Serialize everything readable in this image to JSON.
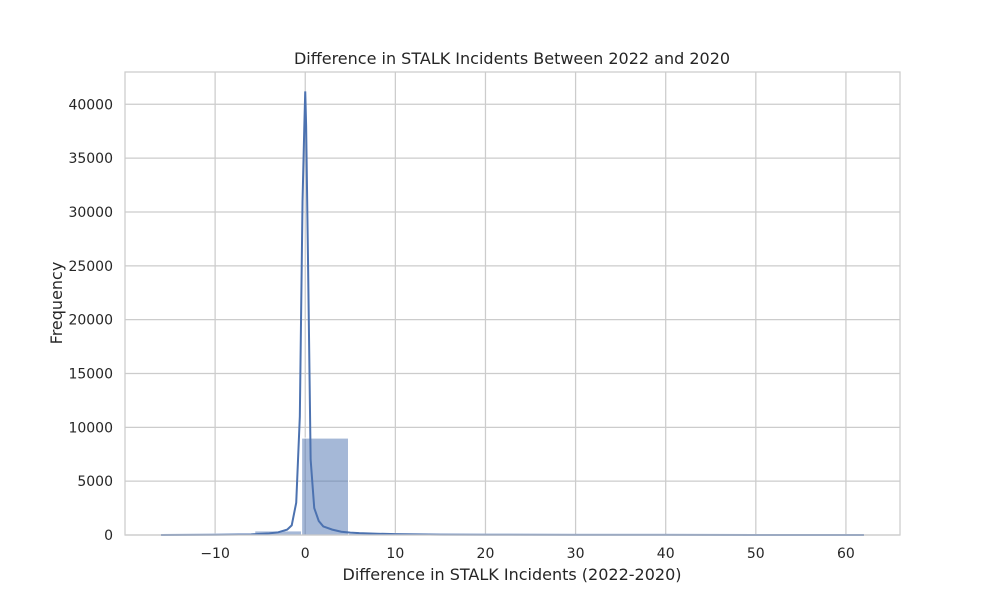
{
  "chart_data": {
    "type": "bar",
    "title": "Difference in STALK Incidents Between 2022 and 2020",
    "xlabel": "Difference in STALK Incidents (2022-2020)",
    "ylabel": "Frequency",
    "xlim": [
      -20,
      66
    ],
    "ylim": [
      0,
      43000
    ],
    "grid": true,
    "color": "#4c72b0",
    "x_ticks": [
      -10,
      0,
      10,
      20,
      30,
      40,
      50,
      60
    ],
    "x_tick_labels": [
      "−10",
      "0",
      "10",
      "20",
      "30",
      "40",
      "50",
      "60"
    ],
    "y_ticks": [
      0,
      5000,
      10000,
      15000,
      20000,
      25000,
      30000,
      35000,
      40000
    ],
    "y_tick_labels": [
      "0",
      "5000",
      "10000",
      "15000",
      "20000",
      "25000",
      "30000",
      "35000",
      "40000"
    ],
    "histogram": {
      "bins": [
        {
          "start": -16,
          "end": -10.8,
          "count": 20
        },
        {
          "start": -10.8,
          "end": -5.6,
          "count": 100
        },
        {
          "start": -5.6,
          "end": -0.4,
          "count": 380
        },
        {
          "start": -0.4,
          "end": 4.8,
          "count": 9000
        },
        {
          "start": 4.8,
          "end": 10,
          "count": 150
        },
        {
          "start": 10,
          "end": 15.2,
          "count": 40
        },
        {
          "start": 15.2,
          "end": 20.4,
          "count": 80
        },
        {
          "start": 20.4,
          "end": 25.6,
          "count": 30
        },
        {
          "start": 25.6,
          "end": 30.8,
          "count": 20
        },
        {
          "start": 30.8,
          "end": 36,
          "count": 15
        },
        {
          "start": 36,
          "end": 41.2,
          "count": 10
        },
        {
          "start": 41.2,
          "end": 46.4,
          "count": 8
        },
        {
          "start": 46.4,
          "end": 51.6,
          "count": 6
        },
        {
          "start": 51.6,
          "end": 56.8,
          "count": 5
        },
        {
          "start": 56.8,
          "end": 62,
          "count": 20
        }
      ]
    },
    "kde": {
      "x": [
        -16,
        -10,
        -6,
        -4,
        -3,
        -2,
        -1.5,
        -1,
        -0.6,
        -0.3,
        -0.1,
        0,
        0.1,
        0.3,
        0.6,
        1,
        1.5,
        2,
        3,
        4,
        5,
        6,
        8,
        10,
        15,
        20,
        30,
        40,
        50,
        62
      ],
      "y": [
        0,
        20,
        60,
        150,
        250,
        500,
        900,
        3000,
        11000,
        31000,
        38000,
        41200,
        38000,
        26000,
        7000,
        2500,
        1300,
        800,
        500,
        300,
        220,
        170,
        120,
        80,
        40,
        25,
        15,
        10,
        5,
        0
      ]
    }
  }
}
